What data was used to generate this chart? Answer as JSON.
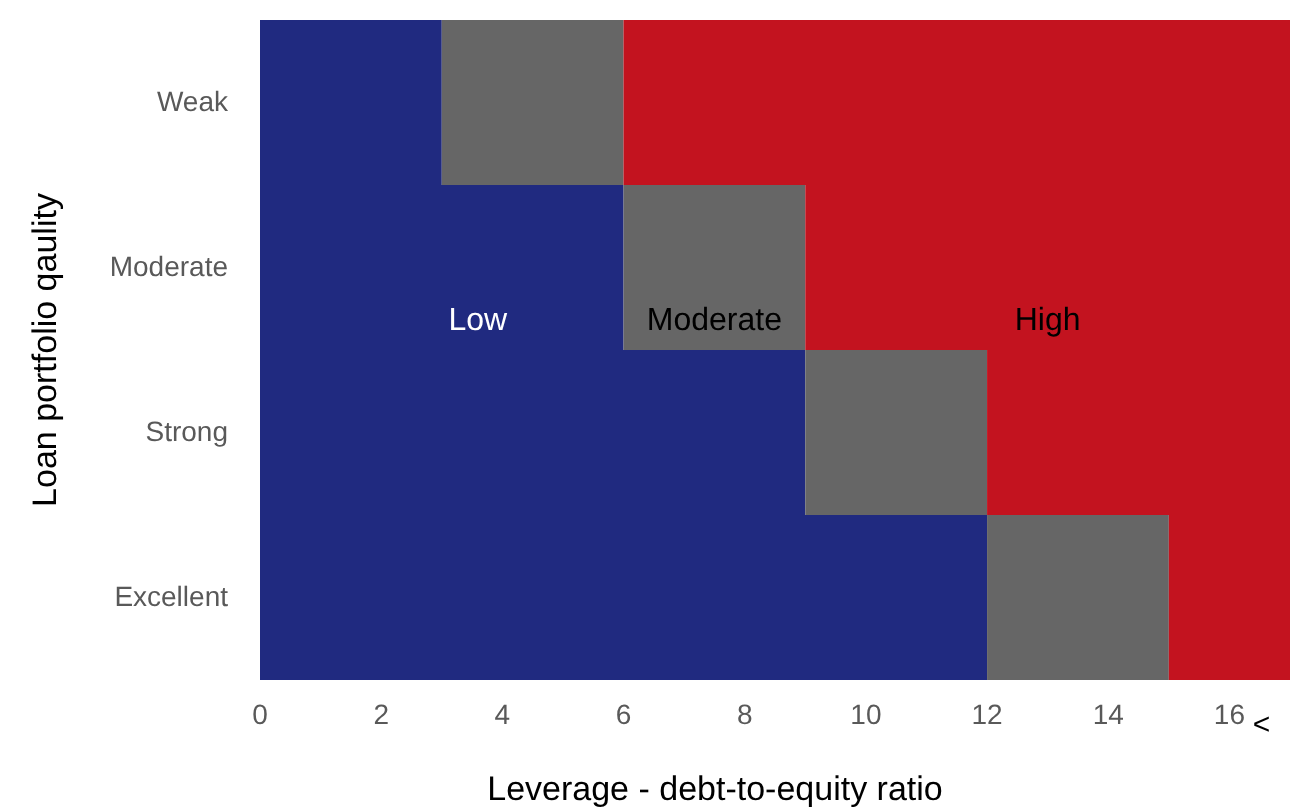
{
  "chart_data": {
    "type": "bar",
    "orientation": "horizontal",
    "stacked": true,
    "xlabel": "Leverage - debt-to-equity ratio",
    "ylabel": "Loan portfolio qaulity",
    "categories": [
      "Weak",
      "Moderate",
      "Strong",
      "Excellent"
    ],
    "series": [
      {
        "name": "Low",
        "color": "#202a80",
        "values": [
          3,
          6,
          9,
          12
        ]
      },
      {
        "name": "Moderate",
        "color": "#666666",
        "values": [
          3,
          3,
          3,
          3
        ]
      },
      {
        "name": "High",
        "color": "#c3131f",
        "values": [
          11,
          8,
          5,
          2
        ]
      }
    ],
    "xlim": [
      0,
      17
    ],
    "xticks": [
      0,
      2,
      4,
      6,
      8,
      10,
      12,
      14,
      16
    ],
    "annotations": [
      "<"
    ],
    "grid": false
  }
}
